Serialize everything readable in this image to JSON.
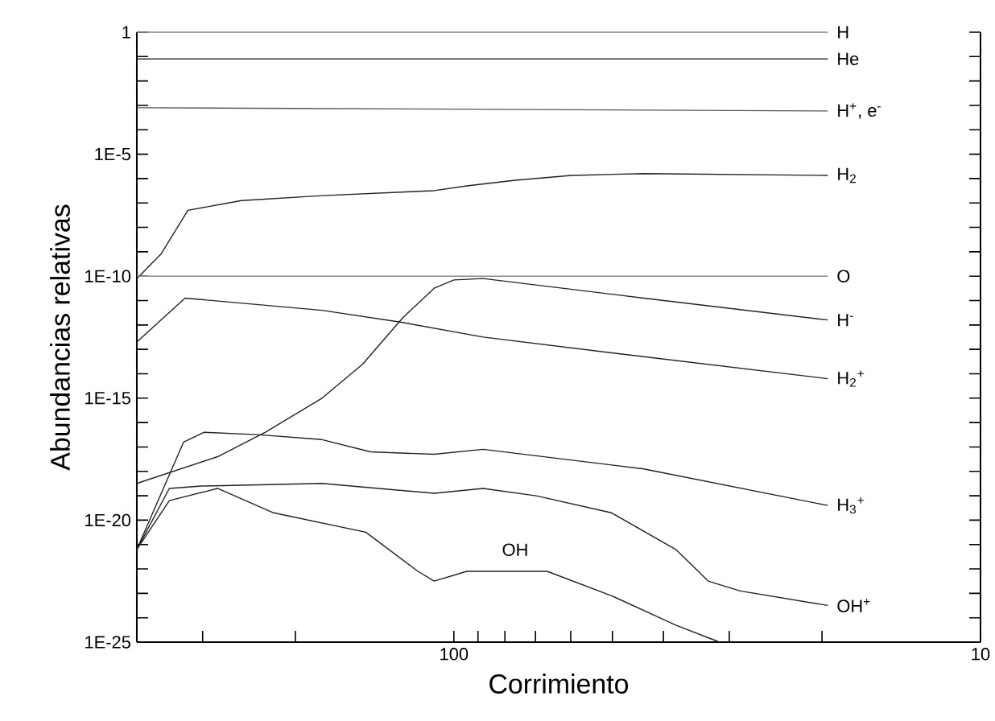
{
  "chart_data": {
    "type": "line",
    "xlabel": "Corrimiento",
    "ylabel": "Abundancias relativas",
    "log": "xy",
    "marker": "none",
    "line_style": "solid",
    "xlim": [
      400,
      10
    ],
    "ylim": [
      1e-25,
      1
    ],
    "xticks": [
      {
        "value": 300,
        "label": null
      },
      {
        "value": 200,
        "label": null
      },
      100,
      {
        "value": 90,
        "label": null
      },
      {
        "value": 80,
        "label": null
      },
      {
        "value": 70,
        "label": null
      },
      {
        "value": 60,
        "label": null
      },
      {
        "value": 50,
        "label": null
      },
      {
        "value": 40,
        "label": null
      },
      {
        "value": 30,
        "label": null
      },
      {
        "value": 20,
        "label": null
      },
      10
    ],
    "yticks": [
      1,
      {
        "value": 0.1,
        "label": null
      },
      {
        "value": 0.01,
        "label": null
      },
      {
        "value": 0.001,
        "label": null
      },
      {
        "value": 0.0001,
        "label": null
      },
      {
        "value": 1e-05,
        "label": "1E-5"
      },
      {
        "value": 1e-06,
        "label": null
      },
      {
        "value": 1e-07,
        "label": null
      },
      {
        "value": 1e-08,
        "label": null
      },
      {
        "value": 1e-09,
        "label": null
      },
      {
        "value": 1e-10,
        "label": "1E-10"
      },
      {
        "value": 1e-11,
        "label": null
      },
      {
        "value": 1e-12,
        "label": null
      },
      {
        "value": 1e-13,
        "label": null
      },
      {
        "value": 1e-14,
        "label": null
      },
      {
        "value": 1e-15,
        "label": "1E-15"
      },
      {
        "value": 1e-16,
        "label": null
      },
      {
        "value": 1e-17,
        "label": null
      },
      {
        "value": 1e-18,
        "label": null
      },
      {
        "value": 1e-19,
        "label": null
      },
      {
        "value": 1e-20,
        "label": "1E-20"
      },
      {
        "value": 1e-21,
        "label": null
      },
      {
        "value": 1e-22,
        "label": null
      },
      {
        "value": 1e-23,
        "label": null
      },
      {
        "value": 1e-24,
        "label": null
      },
      {
        "value": 1e-25,
        "label": "1E-25"
      }
    ],
    "series": [
      {
        "name": "H",
        "color": "#888888",
        "x": [
          400,
          19.5
        ],
        "values": [
          1,
          1
        ]
      },
      {
        "name": "He",
        "color": "#333333",
        "x": [
          400,
          19.5
        ],
        "values": [
          0.08,
          0.08
        ]
      },
      {
        "name": "H$^{+}$, e$^{-}$",
        "color": "#555555",
        "x": [
          400,
          200,
          100,
          50,
          19.5
        ],
        "values": [
          0.0008,
          0.00075,
          0.0007,
          0.00065,
          0.00059
        ]
      },
      {
        "name": "H$_{2}$",
        "color": "#222222",
        "x": [
          400,
          360,
          320,
          253,
          178,
          109,
          94.5,
          76.5,
          59.8,
          43.6,
          19.5
        ],
        "values": [
          8e-11,
          8e-10,
          5e-08,
          1.26e-07,
          2e-07,
          3.2e-07,
          5e-07,
          8.5e-07,
          1.35e-06,
          1.6e-06,
          1.35e-06
        ]
      },
      {
        "name": "O",
        "color": "#888888",
        "x": [
          400,
          19.5
        ],
        "values": [
          1e-10,
          1e-10
        ]
      },
      {
        "name": "H$^{-}$",
        "color": "#222222",
        "x": [
          400,
          281,
          228,
          178,
          149,
          125,
          109,
          100,
          88,
          43.6,
          19.5
        ],
        "values": [
          3.2e-19,
          4e-18,
          4e-17,
          1e-15,
          2.5e-14,
          2e-12,
          3.2e-11,
          7e-11,
          8e-11,
          1.26e-11,
          1.6e-12
        ]
      },
      {
        "name": "H$_{2}$$^{+}$",
        "color": "#222222",
        "x": [
          400,
          324,
          178,
          125,
          88,
          43.6,
          19.5
        ],
        "values": [
          2e-13,
          1.26e-11,
          4e-12,
          1.26e-12,
          3.2e-13,
          5e-14,
          6.3e-15
        ]
      },
      {
        "name": "H$_{3}$$^{+}$",
        "color": "#222222",
        "x": [
          400,
          326,
          298,
          236,
          178,
          144,
          109,
          88,
          43.6,
          19.5
        ],
        "values": [
          6.3e-22,
          1.6e-17,
          4e-17,
          3.2e-17,
          2e-17,
          6.3e-18,
          5e-18,
          8e-18,
          1.26e-18,
          4e-20
        ]
      },
      {
        "name": "OH$^{+}$",
        "color": "#222222",
        "x": [
          400,
          347,
          302,
          178,
          109,
          88,
          69.8,
          50.2,
          37.9,
          32.9,
          28.6,
          19.5
        ],
        "values": [
          6.3e-22,
          2e-19,
          2.5e-19,
          3.2e-19,
          1.26e-19,
          2e-19,
          1e-19,
          2e-20,
          6.3e-22,
          3.2e-23,
          1.26e-23,
          3.2e-24
        ]
      },
      {
        "name": "OH",
        "color": "#222222",
        "x": [
          400,
          347,
          281,
          220,
          147,
          117,
          109,
          94.5,
          76.5,
          66.5,
          50.2,
          37.9,
          31.3
        ],
        "values": [
          6.3e-22,
          6.3e-20,
          2e-19,
          2e-20,
          3.2e-21,
          8e-23,
          3.2e-23,
          8e-23,
          8e-23,
          8e-23,
          8e-24,
          5e-25,
          1e-25
        ]
      }
    ]
  }
}
